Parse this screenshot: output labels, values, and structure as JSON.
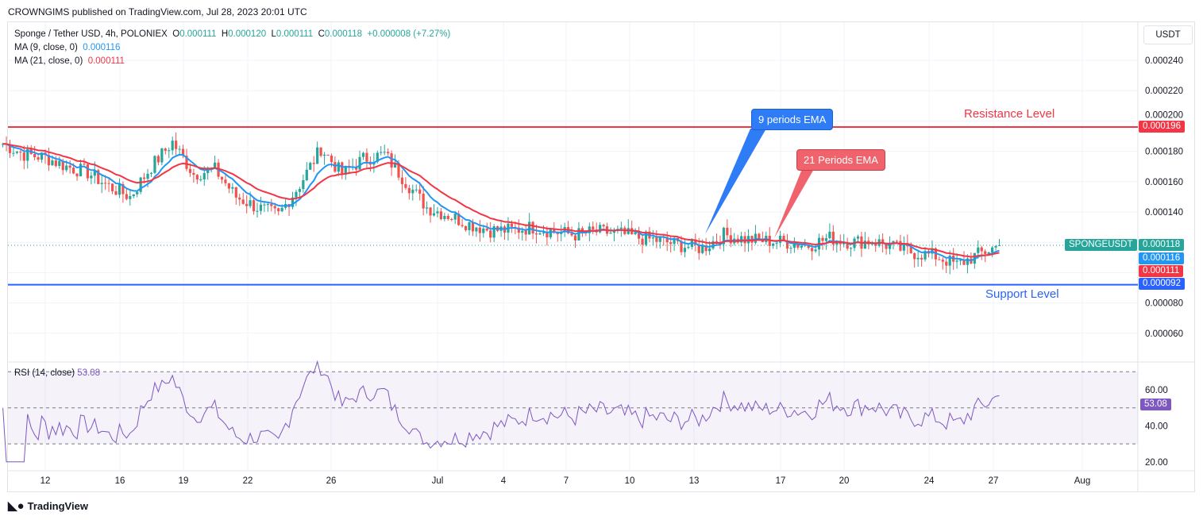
{
  "publisher": "CROWNGIMS published on TradingView.com, Jul 28, 2023 20:01 UTC",
  "legend": {
    "symbol": "Sponge / Tether USD, 4h, POLONIEX",
    "o_label": "O",
    "o": "0.000111",
    "h_label": "H",
    "h": "0.000120",
    "l_label": "L",
    "l": "0.000111",
    "c_label": "C",
    "c": "0.000118",
    "change": "+0.000008 (+7.27%)",
    "ma9": "MA (9, close, 0)",
    "ma9_value": "0.000116",
    "ma21": "MA (21, close, 0)",
    "ma21_value": "0.000111",
    "rsi": "RSI (14, close)",
    "rsi_value": "53.08"
  },
  "currency": "USDT",
  "colors": {
    "up": "#26a69a",
    "down": "#ef5350",
    "ma9": "#2196f3",
    "ma21": "#f23645",
    "support": "#2962ff",
    "resistance": "#f23645",
    "rsi": "#7e57c2"
  },
  "chart_data": {
    "type": "candlestick",
    "price_axis": {
      "ylim": [
        5e-05,
        0.000252
      ],
      "ticks": [
        "0.000240",
        "0.000220",
        "0.000200",
        "0.000180",
        "0.000160",
        "0.000140",
        "0.000080",
        "0.000060"
      ]
    },
    "x_ticks": [
      "12",
      "16",
      "19",
      "22",
      "26",
      "Jul",
      "4",
      "7",
      "10",
      "13",
      "17",
      "20",
      "24",
      "27",
      "Aug"
    ],
    "daily_closes_e6": [
      185,
      178,
      176,
      170,
      166,
      157,
      150,
      170,
      186,
      165,
      168,
      150,
      143,
      138,
      158,
      182,
      165,
      175,
      178,
      160,
      143,
      138,
      132,
      128,
      128,
      130,
      127,
      125,
      127,
      126,
      123,
      121,
      118,
      116,
      125,
      122,
      121,
      120,
      118,
      123,
      120,
      121,
      117,
      113,
      111,
      105,
      112,
      118
    ],
    "resistance": {
      "value": "0.000196",
      "label": "Resistance Level"
    },
    "support": {
      "value": "0.000092",
      "label": "Support Level"
    },
    "last_tags": {
      "symbol": "SPONGEUSDT",
      "close": "0.000118",
      "ma9": "0.000116",
      "ma21": "0.000111"
    },
    "annotations": {
      "ema9": "9 periods EMA",
      "ema21": "21 Periods EMA"
    },
    "rsi_axis": {
      "ticks": [
        "60.00",
        "40.00",
        "20.00"
      ],
      "bands": [
        30,
        70
      ],
      "last": "53.08"
    }
  },
  "footer": "TradingView"
}
